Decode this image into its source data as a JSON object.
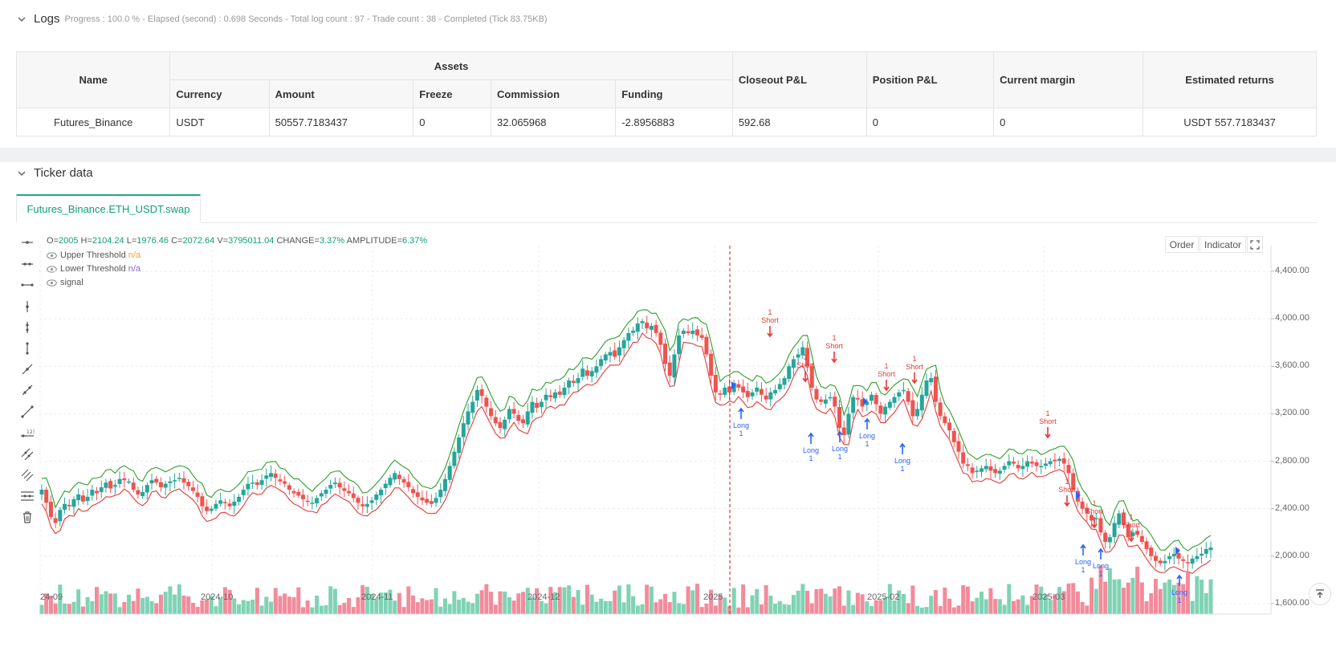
{
  "logs": {
    "title": "Logs",
    "summary": "Progress : 100.0 % - Elapsed (second) : 0.698  Seconds - Total log count : 97 - Trade count : 38 - Completed (Tick 83.75KB)"
  },
  "assets_table": {
    "headers": {
      "name": "Name",
      "assets": "Assets",
      "currency": "Currency",
      "amount": "Amount",
      "freeze": "Freeze",
      "commission": "Commission",
      "funding": "Funding",
      "closeout": "Closeout P&L",
      "position": "Position P&L",
      "margin": "Current margin",
      "returns": "Estimated returns"
    },
    "row": {
      "name": "Futures_Binance",
      "currency": "USDT",
      "amount": "50557.7183437",
      "freeze": "0",
      "commission": "32.065968",
      "funding": "-2.8956883",
      "closeout": "592.68",
      "position": "0",
      "margin": "0",
      "returns": "USDT 557.7183437"
    }
  },
  "ticker": {
    "title": "Ticker data",
    "tab": "Futures_Binance.ETH_USDT.swap",
    "ohlc": {
      "o_label": "O=",
      "o": "2005",
      "h_label": "H=",
      "h": "2104.24",
      "l_label": "L=",
      "l": "1976.46",
      "c_label": "C=",
      "c": "2072.64",
      "v_label": "V=",
      "v": "3795011.04",
      "change_label": "CHANGE=",
      "change": "3.37%",
      "amp_label": "AMPLITUDE=",
      "amp": "6.37%"
    },
    "legend": [
      {
        "name": "Upper Threshold",
        "value": "n/a",
        "color": "#f0a030"
      },
      {
        "name": "Lower Threshold",
        "value": "n/a",
        "color": "#8a5cd0"
      },
      {
        "name": "signal",
        "value": ""
      }
    ],
    "buttons": {
      "order": "Order",
      "indicator": "Indicator"
    }
  },
  "chart_data": {
    "type": "candlestick",
    "y_ticks": [
      "4,400.00",
      "4,000.00",
      "3,600.00",
      "3,200.00",
      "2,800.00",
      "2,400.00",
      "2,000.00",
      "1,600.00"
    ],
    "ylim": [
      1600,
      4400
    ],
    "x_ticks": [
      "24-09",
      "2024-10",
      "2024-11",
      "2024-12",
      "2025",
      "2025-02",
      "2025-03"
    ],
    "closes": [
      2560,
      2450,
      2330,
      2280,
      2390,
      2440,
      2420,
      2480,
      2520,
      2460,
      2500,
      2560,
      2530,
      2580,
      2620,
      2570,
      2600,
      2650,
      2640,
      2630,
      2560,
      2520,
      2540,
      2600,
      2640,
      2620,
      2580,
      2610,
      2630,
      2640,
      2660,
      2620,
      2590,
      2550,
      2500,
      2420,
      2380,
      2400,
      2440,
      2470,
      2450,
      2420,
      2460,
      2500,
      2560,
      2610,
      2620,
      2600,
      2640,
      2680,
      2700,
      2660,
      2630,
      2610,
      2560,
      2530,
      2510,
      2480,
      2460,
      2450,
      2490,
      2530,
      2560,
      2600,
      2620,
      2580,
      2550,
      2530,
      2490,
      2450,
      2420,
      2440,
      2470,
      2520,
      2560,
      2610,
      2660,
      2700,
      2650,
      2620,
      2580,
      2530,
      2500,
      2470,
      2450,
      2440,
      2490,
      2560,
      2650,
      2760,
      2880,
      3000,
      3120,
      3220,
      3300,
      3400,
      3350,
      3260,
      3180,
      3120,
      3080,
      3150,
      3240,
      3200,
      3140,
      3120,
      3220,
      3300,
      3250,
      3300,
      3360,
      3340,
      3380,
      3360,
      3420,
      3480,
      3460,
      3500,
      3580,
      3520,
      3560,
      3600,
      3660,
      3700,
      3720,
      3680,
      3760,
      3820,
      3880,
      3900,
      3960,
      3980,
      3920,
      3940,
      3880,
      3780,
      3620,
      3520,
      3700,
      3860,
      3900,
      3880,
      3900,
      3860,
      3840,
      3700,
      3520,
      3380,
      3360,
      3420,
      3380,
      3460,
      3420,
      3380,
      3340,
      3380,
      3420,
      3360,
      3320,
      3380,
      3400,
      3450,
      3500,
      3600,
      3660,
      3700,
      3760,
      3600,
      3420,
      3320,
      3300,
      3320,
      3340,
      3260,
      3080,
      3020,
      3200,
      3340,
      3320,
      3260,
      3300,
      3360,
      3280,
      3200,
      3260,
      3300,
      3340,
      3380,
      3400,
      3300,
      3180,
      3240,
      3360,
      3480,
      3500,
      3300,
      3180,
      3120,
      3060,
      2960,
      2880,
      2780,
      2760,
      2700,
      2720,
      2740,
      2760,
      2720,
      2700,
      2720,
      2760,
      2800,
      2780,
      2740,
      2760,
      2800,
      2780,
      2760,
      2760,
      2780,
      2800,
      2800,
      2820,
      2780,
      2700,
      2560,
      2460,
      2400,
      2360,
      2300,
      2320,
      2200,
      2120,
      2160,
      2280,
      2360,
      2260,
      2160,
      2200,
      2180,
      2120,
      2060,
      2000,
      1960,
      1940,
      1960,
      2000,
      2020,
      1980,
      1960,
      1940,
      1980,
      2000,
      2020,
      2060,
      2072
    ]
  },
  "colors": {
    "up": "#26a69a",
    "down": "#ef5350",
    "upper_line": "#2ca02c",
    "lower_line": "#e53935",
    "signal_long": "#2962ff",
    "signal_short": "#e53935",
    "accent": "#0f9e7a"
  },
  "signals": {
    "long_label": "Long",
    "short_label": "Short",
    "qty": "1"
  }
}
